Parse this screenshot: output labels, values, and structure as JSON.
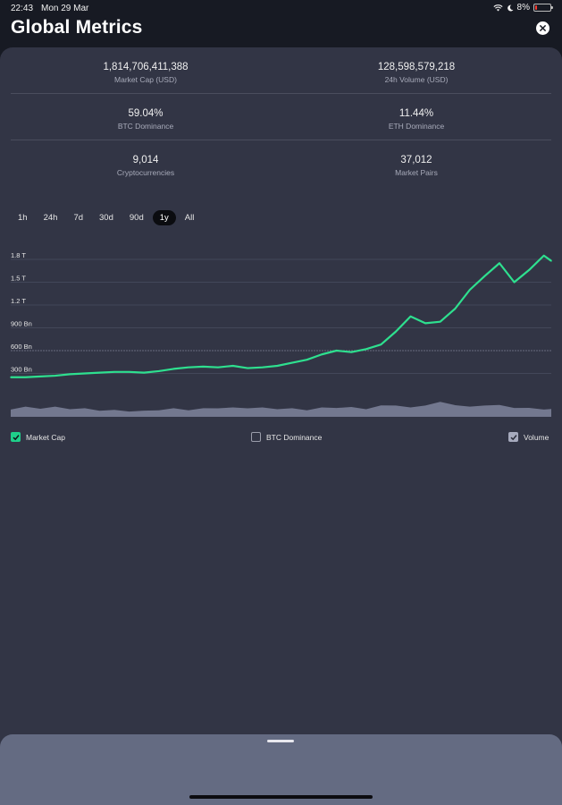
{
  "status": {
    "time": "22:43",
    "date": "Mon 29 Mar",
    "battery": "8%"
  },
  "header": {
    "title": "Global Metrics"
  },
  "metrics": [
    {
      "value": "1,814,706,411,388",
      "label": "Market Cap (USD)"
    },
    {
      "value": "128,598,579,218",
      "label": "24h Volume (USD)"
    },
    {
      "value": "59.04%",
      "label": "BTC Dominance"
    },
    {
      "value": "11.44%",
      "label": "ETH Dominance"
    },
    {
      "value": "9,014",
      "label": "Cryptocurrencies"
    },
    {
      "value": "37,012",
      "label": "Market Pairs"
    }
  ],
  "ranges": [
    "1h",
    "24h",
    "7d",
    "30d",
    "90d",
    "1y",
    "All"
  ],
  "active_range": "1y",
  "legend": {
    "market_cap": {
      "label": "Market Cap",
      "checked": true
    },
    "btc_dominance": {
      "label": "BTC Dominance",
      "checked": false
    },
    "volume": {
      "label": "Volume",
      "checked": true
    }
  },
  "colors": {
    "market_cap_line": "#2ee08f",
    "volume_area": "#7a7f97",
    "background": "#323545"
  },
  "chart_data": {
    "type": "line",
    "x": [
      0,
      10,
      20,
      30,
      40,
      50,
      60,
      70,
      80,
      90,
      100,
      110,
      120,
      130,
      140,
      150,
      160,
      170,
      180,
      190,
      200,
      210,
      220,
      230,
      240,
      250,
      260,
      270,
      280,
      290,
      300,
      310,
      320,
      330,
      340,
      350,
      360,
      365
    ],
    "series": [
      {
        "values": [
          0.25,
          0.25,
          0.26,
          0.27,
          0.29,
          0.3,
          0.31,
          0.32,
          0.32,
          0.31,
          0.33,
          0.36,
          0.38,
          0.39,
          0.38,
          0.4,
          0.37,
          0.38,
          0.4,
          0.44,
          0.48,
          0.55,
          0.6,
          0.58,
          0.62,
          0.68,
          0.85,
          1.05,
          0.96,
          0.98,
          1.15,
          1.4,
          1.58,
          1.75,
          1.5,
          1.66,
          1.85,
          1.78
        ]
      },
      {
        "name": "Volume",
        "values": [
          0.18,
          0.22,
          0.2,
          0.22,
          0.19,
          0.18,
          0.15,
          0.14,
          0.13,
          0.12,
          0.16,
          0.18,
          0.16,
          0.18,
          0.21,
          0.2,
          0.21,
          0.2,
          0.19,
          0.18,
          0.16,
          0.2,
          0.22,
          0.21,
          0.19,
          0.25,
          0.28,
          0.2,
          0.28,
          0.34,
          0.29,
          0.22,
          0.28,
          0.26,
          0.22,
          0.19,
          0.18,
          0.16
        ]
      }
    ],
    "y_ticks": [
      "300 Bn",
      "600 Bn",
      "900 Bn",
      "1.2 T",
      "1.5 T",
      "1.8 T"
    ],
    "ylim": [
      0,
      2.0
    ],
    "grid": true
  }
}
